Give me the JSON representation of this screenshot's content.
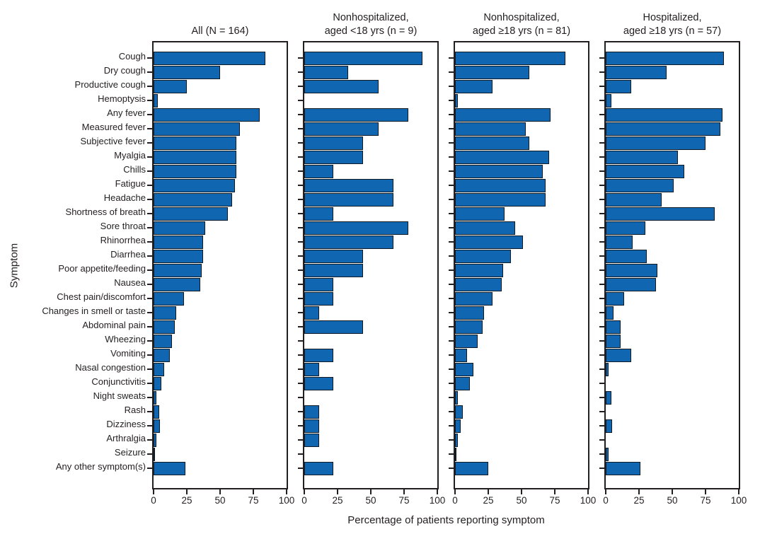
{
  "chart_data": {
    "type": "bar",
    "orientation": "horizontal",
    "title": "",
    "xlabel": "Percentage of patients reporting symptom",
    "ylabel": "Symptom",
    "xlim": [
      0,
      100
    ],
    "x_ticks": [
      0,
      25,
      50,
      75,
      100
    ],
    "grid": false,
    "legend_position": "none",
    "bar_color": "#1066b1",
    "bar_border_color": "#0f1b26",
    "axis_color": "#231f20",
    "categories": [
      "Cough",
      "Dry cough",
      "Productive cough",
      "Hemoptysis",
      "Any fever",
      "Measured fever",
      "Subjective fever",
      "Myalgia",
      "Chills",
      "Fatigue",
      "Headache",
      "Shortness of breath",
      "Sore throat",
      "Rhinorrhea",
      "Diarrhea",
      "Poor appetite/feeding",
      "Nausea",
      "Chest pain/discomfort",
      "Changes in smell or taste",
      "Abdominal pain",
      "Wheezing",
      "Vomiting",
      "Nasal congestion",
      "Conjunctivitis",
      "Night sweats",
      "Rash",
      "Dizziness",
      "Arthralgia",
      "Seizure",
      "Any other symptom(s)"
    ],
    "panel_titles": [
      [
        "All (N = 164)"
      ],
      [
        "Nonhospitalized,",
        "aged <18 yrs (n = 9)"
      ],
      [
        "Nonhospitalized,",
        "aged ≥18 yrs (n = 81)"
      ],
      [
        "Hospitalized,",
        "aged ≥18 yrs (n = 57)"
      ]
    ],
    "series": [
      {
        "name": "All (N = 164)",
        "values": [
          84,
          50,
          25,
          3,
          80,
          65,
          62,
          62,
          62,
          61,
          59,
          56,
          39,
          37,
          37,
          36,
          35,
          23,
          17,
          16,
          14,
          12,
          8,
          6,
          2,
          4,
          5,
          2,
          1,
          24
        ]
      },
      {
        "name": "Nonhospitalized, aged <18 yrs (n = 9)",
        "values": [
          89,
          33,
          56,
          0,
          78,
          56,
          44,
          44,
          22,
          67,
          67,
          22,
          78,
          67,
          44,
          44,
          22,
          22,
          11,
          44,
          0,
          22,
          11,
          22,
          0,
          11,
          11,
          11,
          0,
          22
        ]
      },
      {
        "name": "Nonhospitalized, aged ≥18 yrs (n = 81)",
        "values": [
          83,
          56,
          28,
          2,
          72,
          53,
          56,
          71,
          66,
          68,
          68,
          37,
          45,
          51,
          42,
          36,
          35,
          28,
          22,
          21,
          17,
          9,
          14,
          11,
          2,
          6,
          4,
          2,
          1,
          25
        ]
      },
      {
        "name": "Hospitalized, aged ≥18 yrs (n = 57)",
        "values": [
          89,
          46,
          19,
          4,
          88,
          86,
          75,
          54,
          59,
          51,
          42,
          82,
          30,
          20,
          31,
          39,
          38,
          14,
          6,
          11,
          11,
          19,
          2,
          0,
          4,
          0,
          5,
          0,
          2,
          26
        ]
      }
    ]
  }
}
